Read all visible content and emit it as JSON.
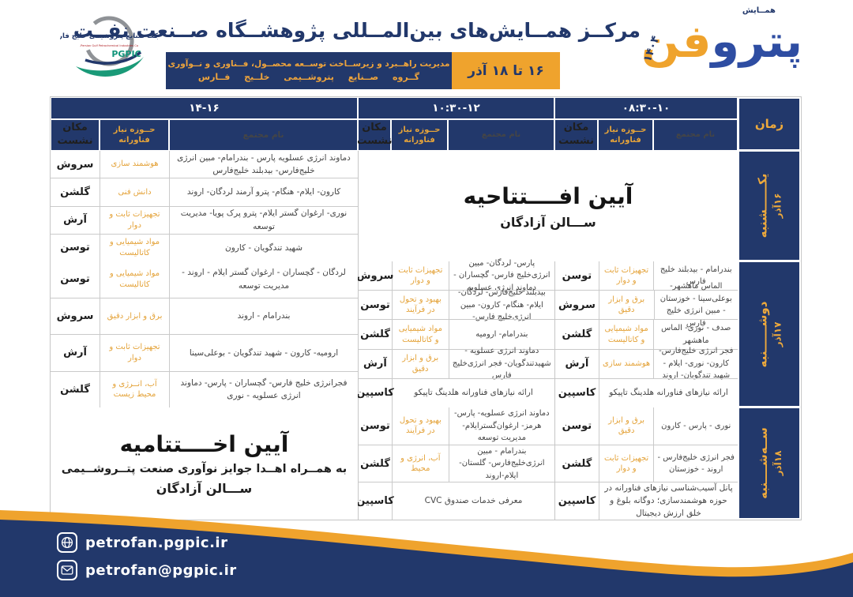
{
  "header": {
    "pgpic_logo": {
      "org_fa": "شرکت صنایع پتروشیمی خلیج فارس",
      "org_en": "Persian Gulf Petrochemical Industries Co.",
      "abbr": "PGPIC"
    },
    "title": "مرکــز همــایش‌های بین‌المــللی پژوهشــگاه صــنعت نفــت",
    "dept_line1": "مدیریت راهــبرد و زیرســاخت توســعه محصــول، فــناوری و نــوآوری",
    "dept_line2": "گــروه صــنایع پتروشــیمی خلــیج فــارس",
    "date_badge": "۱۶ تا ۱۸ آذر",
    "event": {
      "tag": "همــایش",
      "year": "۱۴۰۴",
      "name_blue": "پترو",
      "name_orange": "فن"
    }
  },
  "table": {
    "time_col_label": "زمان",
    "col_headers": {
      "name": "نام مجتمع",
      "need": "حــوزه نیاز فناورانه",
      "place": "مکان نشست"
    },
    "sections": [
      {
        "id": "s08",
        "slot": "۰۸:۳۰-۱۰"
      },
      {
        "id": "s10",
        "slot": "۱۰:۳۰-۱۲"
      },
      {
        "id": "s14",
        "slot": "۱۴-۱۶"
      }
    ],
    "days": [
      {
        "label": "یکــــــشنبه",
        "date": "۱۶آذر",
        "cells": [
          {
            "type": "ceremony",
            "span": "s08s10",
            "title": "آیین افــــتتاحیه",
            "hall": "ســـالن آزادگان"
          },
          {
            "type": "section",
            "section": "s14",
            "rows": [
              {
                "place": "سروش",
                "need": "هوشمند سازی",
                "venues": "دماوند انرژی عسلویه پارس - بندرامام- مبین انرژی خلیج‌فارس- بیدبلند خلیج‌فارس"
              },
              {
                "place": "گلشن",
                "need": "دانش فنی",
                "venues": "کارون- ایلام- هنگام- پترو آرمند لردگان- اروند"
              },
              {
                "place": "آرش",
                "need": "تجهیزات ثابت و دوار",
                "venues": "نوری- ارغوان گستر ایلام- پترو پرک پویا- مدیریت توسعه"
              },
              {
                "place": "توسن",
                "need": "مواد شیمیایی و کاتالیست",
                "venues": "شهید تندگویان - کارون"
              }
            ]
          }
        ]
      },
      {
        "label": "دوشــــــنبه",
        "date": "۱۷آذر",
        "cells": [
          {
            "type": "section",
            "section": "s08",
            "rows": [
              {
                "place": "توسن",
                "need": "تجهیزات ثابت و دوار",
                "venues": "بندرامام - بیدبلند خلیج فارس"
              },
              {
                "place": "سروش",
                "need": "برق و ابزار دقیق",
                "venues": "الماس ماهشهر- بوعلی‌سینا - خوزستان - مبین انرژی خلیج فارس"
              },
              {
                "place": "گلشن",
                "need": "مواد شیمیایی و کاتالیست",
                "venues": "صدف - نوری- الماس ماهشهر"
              },
              {
                "place": "آرش",
                "need": "هوشمند سازی",
                "venues": "فجر انرژی خلیج‌فارس- کارون- نوری- ایلام - شهید تندگویان- اروند"
              },
              {
                "place": "کاسپین",
                "note": "ارائه نیازهای فناورانه هلدینگ تاپیکو"
              }
            ]
          },
          {
            "type": "section",
            "section": "s10",
            "rows": [
              {
                "place": "سروش",
                "need": "تجهیزات ثابت و دوار",
                "venues": "پارس- لردگان- مبین انرژی‌خلیج فارس- گچساران - دماوند انرژی عسلویه"
              },
              {
                "place": "توسن",
                "need": "بهبود و تحول در فرآیند",
                "venues": "بیدبلند خلیج‌فارس- لردگان- ایلام- هنگام- کارون- مبین انرژی‌خلیج فارس-"
              },
              {
                "place": "گلشن",
                "need": "مواد شیمیایی و کاتالیست",
                "venues": "بندرامام- ارومیه"
              },
              {
                "place": "آرش",
                "need": "برق و ابزار دقیق",
                "venues": "دماوند انرژی عسلویه - شهیدتندگویان- فجر انرژی‌خلیج فارس"
              },
              {
                "place": "کاسپین",
                "note": "ارائه نیازهای فناورانه هلدینگ تاپیکو"
              }
            ]
          },
          {
            "type": "section",
            "section": "s14",
            "rows": [
              {
                "place": "توسن",
                "need": "مواد شیمیایی و کاتالیست",
                "venues": "لردگان - گچساران - ارغوان گستر ایلام - اروند - مدیریت توسعه"
              },
              {
                "place": "سروش",
                "need": "برق و ابزار دقیق",
                "venues": "بندرامام - اروند"
              },
              {
                "place": "آرش",
                "need": "تجهیزات ثابت و دوار",
                "venues": "ارومیه- کارون - شهید تندگویان - بوعلی‌سینا"
              },
              {
                "place": "گلشن",
                "need": "آب، انــرژی و محیط زیست",
                "venues": "فجرانرژی خلیج فارس- گچساران - پارس- دماوند انرژی عسلویه - نوری"
              }
            ]
          }
        ]
      },
      {
        "label": "ســه‌شــــنبه",
        "date": "۱۸آذر",
        "cells": [
          {
            "type": "section",
            "section": "s08",
            "rows": [
              {
                "place": "توسن",
                "need": "برق و ابزار دقیق",
                "venues": "نوری - پارس - کارون"
              },
              {
                "place": "گلشن",
                "need": "تجهیزات ثابت و دوار",
                "venues": "فجر انرژی خلیج‌فارس - اروند - خوزستان"
              },
              {
                "place": "کاسپین",
                "note": "پانل آسیب‌شناسی نیازهای فناورانه در حوزه هوشمندسازی؛ دوگانه بلوغ و خلق ارزش دیجیتال"
              }
            ]
          },
          {
            "type": "section",
            "section": "s10",
            "rows": [
              {
                "place": "توسن",
                "need": "بهبود و تحول در فرآیند",
                "venues": "دماوند انرژی عسلویه- پارس- هرمز- ارغوان‌گسترایلام- مدیریت توسعه"
              },
              {
                "place": "گلشن",
                "need": "آب، انرژی و محیط",
                "venues": "بندرامام - مبین انرژی‌خلیج‌فارس- گلستان- ایلام-اروند"
              },
              {
                "place": "کاسپین",
                "note": "معرفی خدمات صندوق CVC"
              }
            ]
          },
          {
            "type": "ceremony",
            "span": "s14",
            "title": "آیین اخــــتتامیه",
            "note": "به همــراه اهــدا جوایز نوآوری صنعت پتــروشــیمی",
            "hall": "ســـالن آزادگان"
          }
        ]
      }
    ]
  },
  "footer": {
    "website": "petrofan.pgpic.ir",
    "email": "petrofan@pgpic.ir"
  },
  "colors": {
    "navy": "#22386b",
    "gold": "#efa32d",
    "table_orange": "#e4a33a",
    "logo_blue": "#2e4da2"
  }
}
